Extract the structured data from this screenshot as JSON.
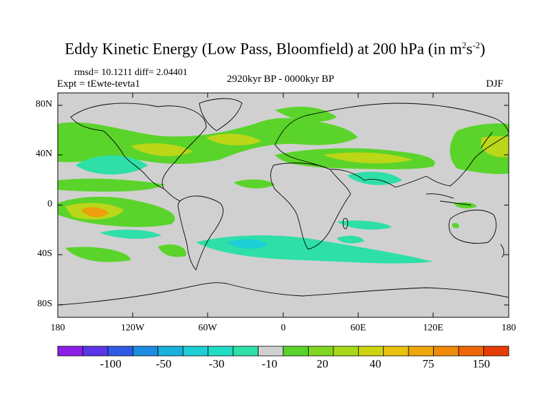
{
  "title": {
    "main": "Eddy Kinetic Energy (Low Pass, Bloomfield) at 200 hPa (in m",
    "sup1": "2",
    "mid": "s",
    "sup2": "-2",
    "end": ")"
  },
  "stats": "rmsd= 10.1211 diff= 2.04401",
  "expt": "Expt = tEwte-tevta1",
  "period": "2920kyr BP - 0000kyr BP",
  "season": "DJF",
  "y_ticks": [
    "80N",
    "40N",
    "0",
    "40S",
    "80S"
  ],
  "x_ticks": [
    "180",
    "120W",
    "60W",
    "0",
    "60E",
    "120E",
    "180"
  ],
  "colorbar": {
    "labels": [
      "-100",
      "-50",
      "-30",
      "-10",
      "20",
      "40",
      "75",
      "150"
    ],
    "colors": [
      "#8c1ee6",
      "#5a36e6",
      "#2f5be6",
      "#1c8ce0",
      "#18b0dc",
      "#1ccfd6",
      "#22dcc6",
      "#2edfa8",
      "#d0d0d0",
      "#5ad42a",
      "#80d620",
      "#a8d818",
      "#cdd412",
      "#e8c20e",
      "#eea80c",
      "#f08a0a",
      "#ee6608",
      "#e63c08"
    ]
  },
  "map_colors": {
    "background": "#d0d0d0",
    "green": "#5ad42a",
    "light_green": "#90d81e",
    "yellow_green": "#bcd618",
    "yellow": "#dcc612",
    "orange": "#eca00c",
    "teal": "#2edfa8",
    "cyan": "#1ccfd6",
    "blue_cyan": "#18b0dc",
    "coast": "#000000"
  }
}
